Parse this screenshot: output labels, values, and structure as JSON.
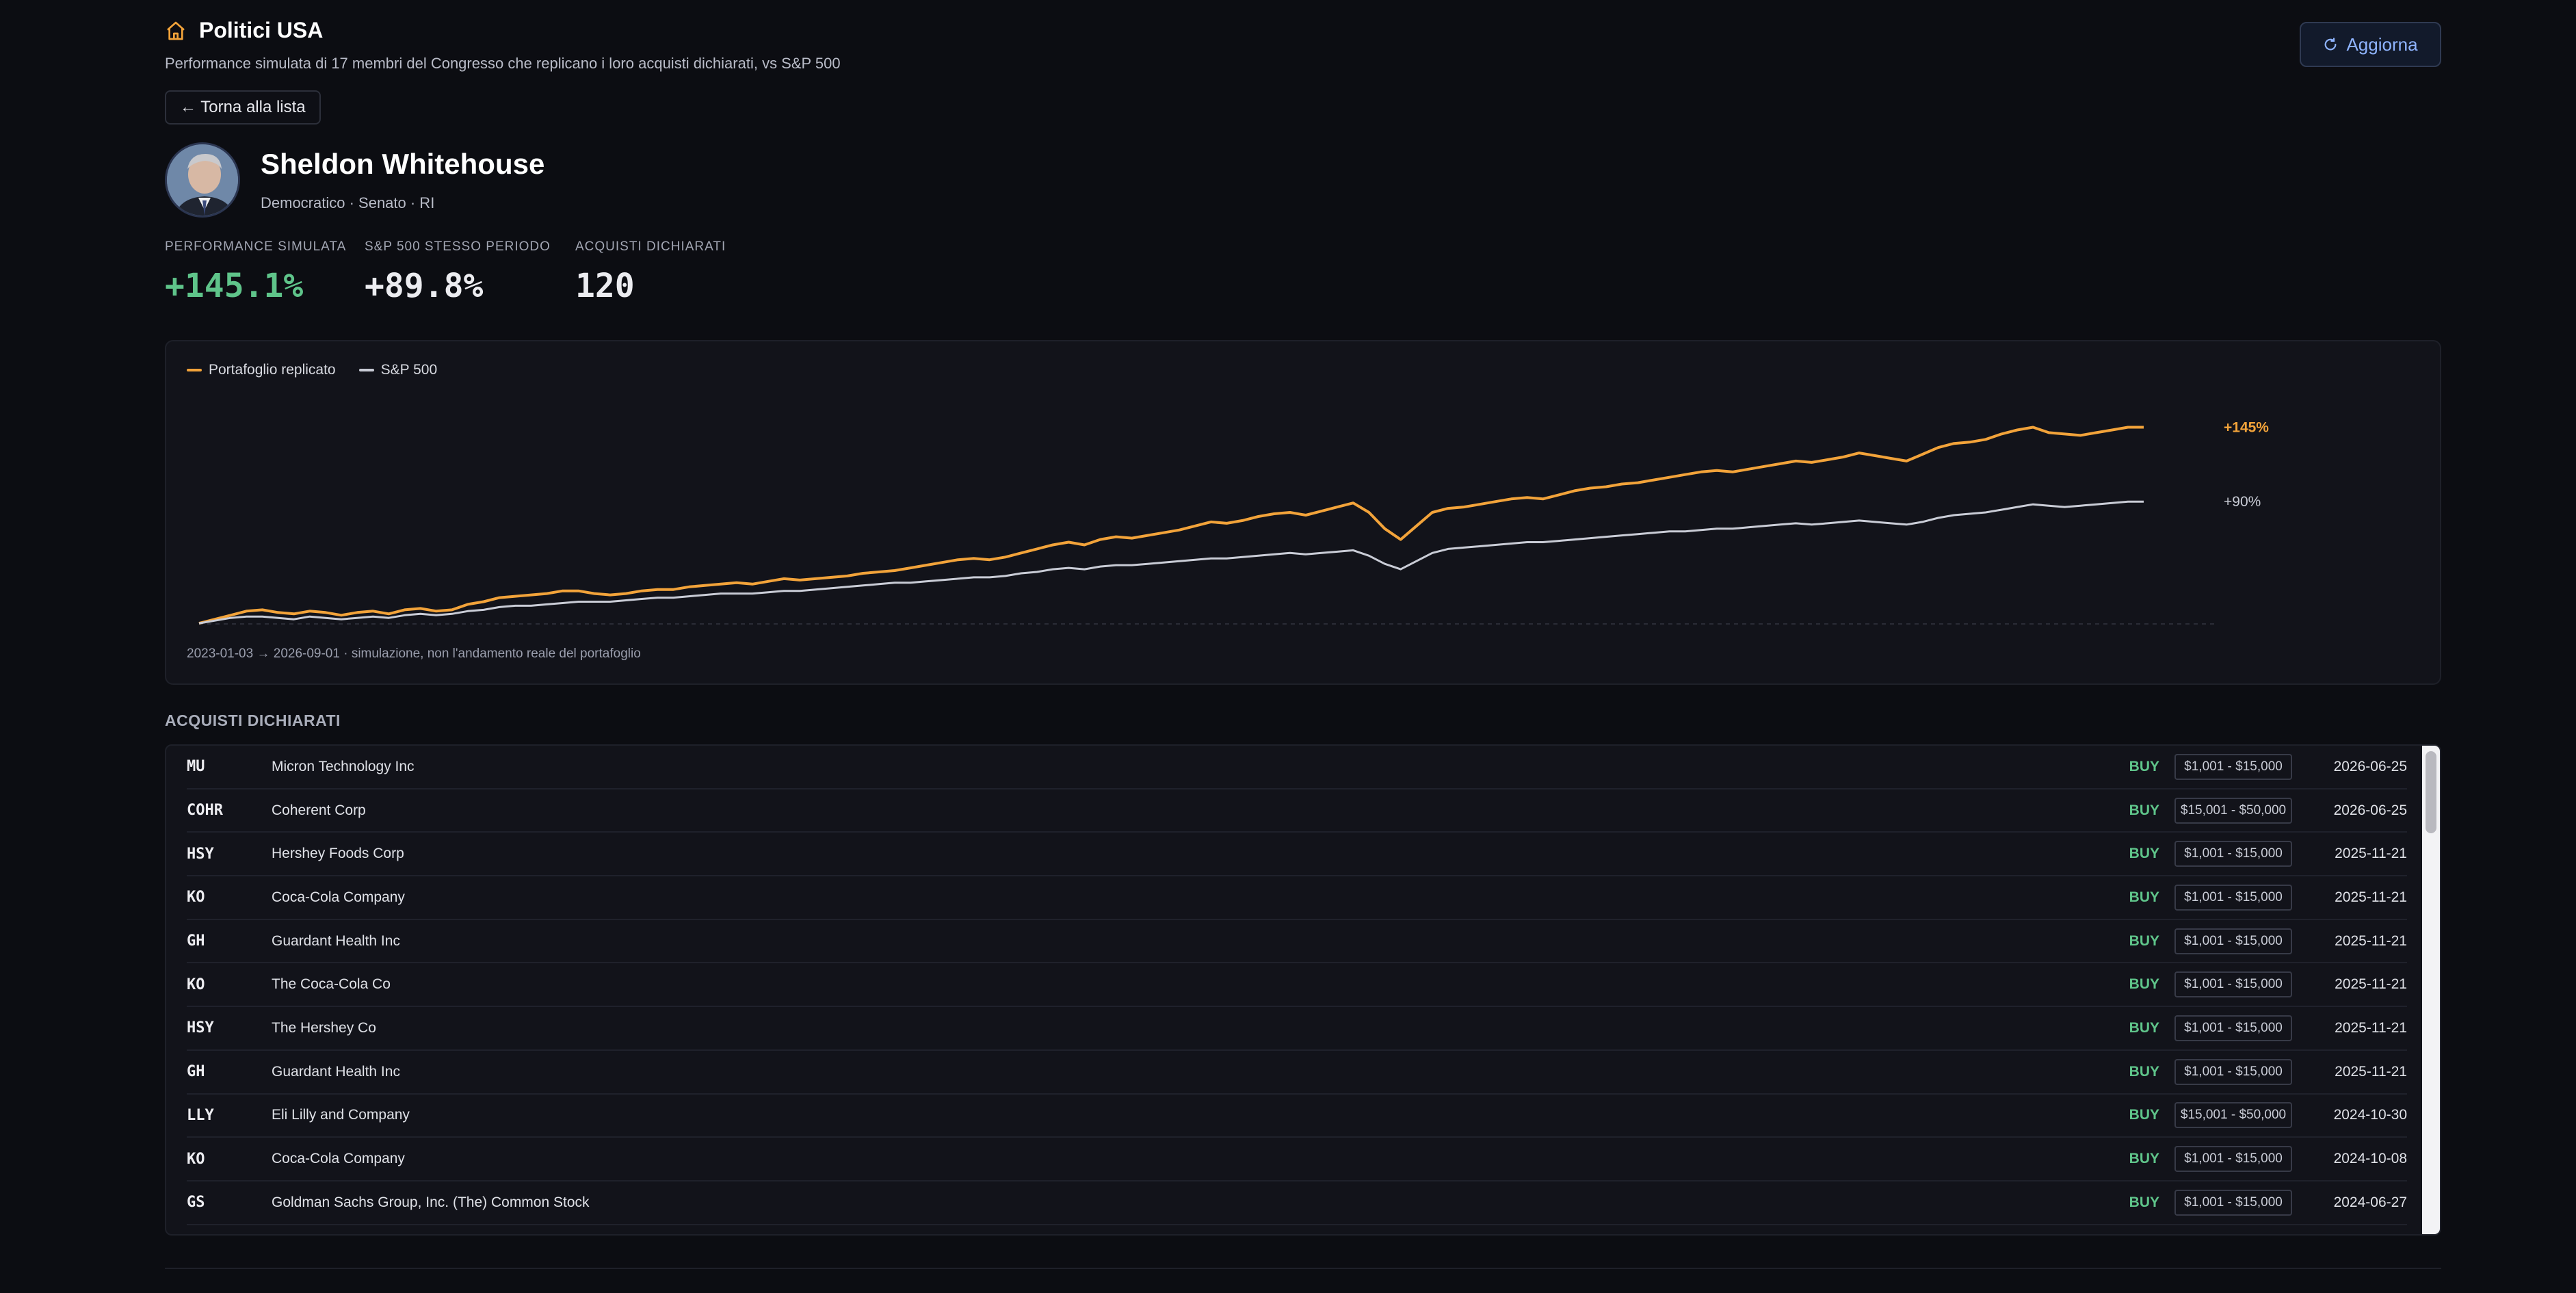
{
  "header": {
    "title": "Politici USA",
    "subtitle": "Performance simulata di 17 membri del Congresso che replicano i loro acquisti dichiarati, vs S&P 500",
    "refresh_label": "Aggiorna",
    "back_label": "← Torna alla lista"
  },
  "politician": {
    "name": "Sheldon Whitehouse",
    "meta": "Democratico · Senato · RI"
  },
  "stats": [
    {
      "label": "PERFORMANCE SIMULATA",
      "value": "+145.1%"
    },
    {
      "label": "S&P 500 STESSO PERIODO",
      "value": "+89.8%"
    },
    {
      "label": "ACQUISTI DICHIARATI",
      "value": "120"
    }
  ],
  "colors": {
    "portfolio": "#f2a33a",
    "sp500": "#c9ccd6",
    "buy": "#5fc48a",
    "accent": "#8fb4ff"
  },
  "chart_data": {
    "type": "line",
    "x_range": [
      "2023-01-03",
      "2026-09-01"
    ],
    "ylim": [
      -5,
      165
    ],
    "series": [
      {
        "name": "Portafoglio replicato",
        "end_label": "+145%",
        "values": [
          0,
          3,
          6,
          9,
          10,
          8,
          7,
          9,
          8,
          6,
          8,
          9,
          7,
          10,
          11,
          9,
          10,
          14,
          16,
          19,
          20,
          21,
          22,
          24,
          24,
          22,
          21,
          22,
          24,
          25,
          25,
          27,
          28,
          29,
          30,
          29,
          31,
          33,
          32,
          33,
          34,
          35,
          37,
          38,
          39,
          41,
          43,
          45,
          47,
          48,
          47,
          49,
          52,
          55,
          58,
          60,
          58,
          62,
          64,
          63,
          65,
          67,
          69,
          72,
          75,
          74,
          76,
          79,
          81,
          82,
          80,
          83,
          86,
          89,
          82,
          70,
          62,
          72,
          82,
          85,
          86,
          88,
          90,
          92,
          93,
          92,
          95,
          98,
          100,
          101,
          103,
          104,
          106,
          108,
          110,
          112,
          113,
          112,
          114,
          116,
          118,
          120,
          119,
          121,
          123,
          126,
          124,
          122,
          120,
          125,
          130,
          133,
          134,
          136,
          140,
          143,
          145,
          141,
          140,
          139,
          141,
          143,
          145,
          145
        ]
      },
      {
        "name": "S&P 500",
        "end_label": "+90%",
        "values": [
          0,
          2,
          4,
          5,
          5,
          4,
          3,
          5,
          4,
          3,
          4,
          5,
          4,
          6,
          7,
          6,
          7,
          9,
          10,
          12,
          13,
          13,
          14,
          15,
          16,
          16,
          16,
          17,
          18,
          19,
          19,
          20,
          21,
          22,
          22,
          22,
          23,
          24,
          24,
          25,
          26,
          27,
          28,
          29,
          30,
          30,
          31,
          32,
          33,
          34,
          34,
          35,
          37,
          38,
          40,
          41,
          40,
          42,
          43,
          43,
          44,
          45,
          46,
          47,
          48,
          48,
          49,
          50,
          51,
          52,
          51,
          52,
          53,
          54,
          50,
          44,
          40,
          46,
          52,
          55,
          56,
          57,
          58,
          59,
          60,
          60,
          61,
          62,
          63,
          64,
          65,
          66,
          67,
          68,
          68,
          69,
          70,
          70,
          71,
          72,
          73,
          74,
          73,
          74,
          75,
          76,
          75,
          74,
          73,
          75,
          78,
          80,
          81,
          82,
          84,
          86,
          88,
          87,
          86,
          87,
          88,
          89,
          90,
          90
        ]
      }
    ],
    "footnote": "2023-01-03 → 2026-09-01 · simulazione, non l'andamento reale del portafoglio"
  },
  "purchases": {
    "section_title": "ACQUISTI DICHIARATI",
    "rows": [
      {
        "ticker": "MU",
        "company": "Micron Technology Inc",
        "action": "BUY",
        "amount": "$1,001 - $15,000",
        "date": "2026-06-25"
      },
      {
        "ticker": "COHR",
        "company": "Coherent Corp",
        "action": "BUY",
        "amount": "$15,001 - $50,000",
        "date": "2026-06-25"
      },
      {
        "ticker": "HSY",
        "company": "Hershey Foods Corp",
        "action": "BUY",
        "amount": "$1,001 - $15,000",
        "date": "2025-11-21"
      },
      {
        "ticker": "KO",
        "company": "Coca-Cola Company",
        "action": "BUY",
        "amount": "$1,001 - $15,000",
        "date": "2025-11-21"
      },
      {
        "ticker": "GH",
        "company": "Guardant Health Inc",
        "action": "BUY",
        "amount": "$1,001 - $15,000",
        "date": "2025-11-21"
      },
      {
        "ticker": "KO",
        "company": "The Coca-Cola Co",
        "action": "BUY",
        "amount": "$1,001 - $15,000",
        "date": "2025-11-21"
      },
      {
        "ticker": "HSY",
        "company": "The Hershey Co",
        "action": "BUY",
        "amount": "$1,001 - $15,000",
        "date": "2025-11-21"
      },
      {
        "ticker": "GH",
        "company": "Guardant Health Inc",
        "action": "BUY",
        "amount": "$1,001 - $15,000",
        "date": "2025-11-21"
      },
      {
        "ticker": "LLY",
        "company": "Eli Lilly and Company",
        "action": "BUY",
        "amount": "$15,001 - $50,000",
        "date": "2024-10-30"
      },
      {
        "ticker": "KO",
        "company": "Coca-Cola Company",
        "action": "BUY",
        "amount": "$1,001 - $15,000",
        "date": "2024-10-08"
      },
      {
        "ticker": "GS",
        "company": "Goldman Sachs Group, Inc. (The) Common Stock",
        "action": "BUY",
        "amount": "$1,001 - $15,000",
        "date": "2024-06-27"
      }
    ]
  }
}
